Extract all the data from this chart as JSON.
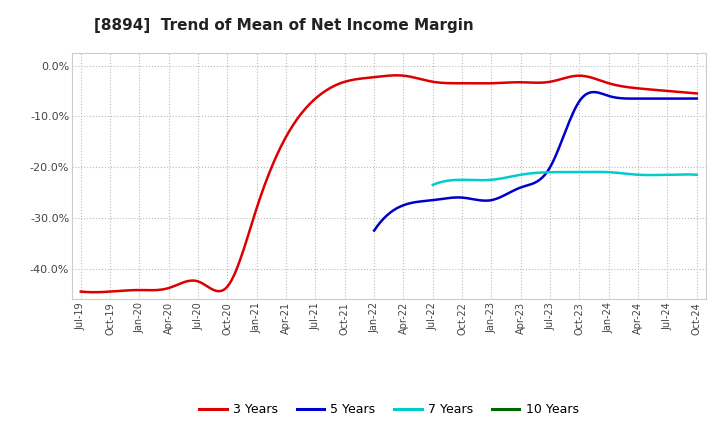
{
  "title": "[8894]  Trend of Mean of Net Income Margin",
  "title_fontsize": 11,
  "background_color": "#ffffff",
  "plot_bg_color": "#ffffff",
  "grid_color": "#aaaaaa",
  "ylim": [
    -46,
    2.5
  ],
  "yticks": [
    0,
    -10,
    -20,
    -30,
    -40
  ],
  "ytick_labels": [
    "0.0%",
    "-10.0%",
    "-20.0%",
    "-30.0%",
    "-40.0%"
  ],
  "series": {
    "3 Years": {
      "color": "#dd0000",
      "data": [
        [
          "Jul-19",
          -44.5
        ],
        [
          "Oct-19",
          -44.5
        ],
        [
          "Jan-20",
          -44.2
        ],
        [
          "Apr-20",
          -43.8
        ],
        [
          "Jul-20",
          -42.5
        ],
        [
          "Oct-20",
          -43.5
        ],
        [
          "Jan-21",
          -28.0
        ],
        [
          "Apr-21",
          -14.0
        ],
        [
          "Jul-21",
          -6.5
        ],
        [
          "Oct-21",
          -3.2
        ],
        [
          "Jan-22",
          -2.3
        ],
        [
          "Apr-22",
          -2.0
        ],
        [
          "Jul-22",
          -3.2
        ],
        [
          "Oct-22",
          -3.5
        ],
        [
          "Jan-23",
          -3.5
        ],
        [
          "Apr-23",
          -3.3
        ],
        [
          "Jul-23",
          -3.2
        ],
        [
          "Oct-23",
          -2.0
        ],
        [
          "Jan-24",
          -3.5
        ],
        [
          "Apr-24",
          -4.5
        ],
        [
          "Jul-24",
          -5.0
        ],
        [
          "Oct-24",
          -5.5
        ]
      ]
    },
    "5 Years": {
      "color": "#0000cc",
      "data": [
        [
          "Jan-22",
          -32.5
        ],
        [
          "Apr-22",
          -27.5
        ],
        [
          "Jul-22",
          -26.5
        ],
        [
          "Oct-22",
          -26.0
        ],
        [
          "Jan-23",
          -26.5
        ],
        [
          "Apr-23",
          -24.0
        ],
        [
          "Jul-23",
          -20.0
        ],
        [
          "Oct-23",
          -7.0
        ],
        [
          "Jan-24",
          -6.0
        ],
        [
          "Apr-24",
          -6.5
        ],
        [
          "Jul-24",
          -6.5
        ],
        [
          "Oct-24",
          -6.5
        ]
      ]
    },
    "7 Years": {
      "color": "#00cccc",
      "data": [
        [
          "Jul-22",
          -23.5
        ],
        [
          "Oct-22",
          -22.5
        ],
        [
          "Jan-23",
          -22.5
        ],
        [
          "Apr-23",
          -21.5
        ],
        [
          "Jul-23",
          -21.0
        ],
        [
          "Oct-23",
          -21.0
        ],
        [
          "Jan-24",
          -21.0
        ],
        [
          "Apr-24",
          -21.5
        ],
        [
          "Jul-24",
          -21.5
        ],
        [
          "Oct-24",
          -21.5
        ]
      ]
    },
    "10 Years": {
      "color": "#006600",
      "data": []
    }
  },
  "x_tick_labels": [
    "Jul-19",
    "Oct-19",
    "Jan-20",
    "Apr-20",
    "Jul-20",
    "Oct-20",
    "Jan-21",
    "Apr-21",
    "Jul-21",
    "Oct-21",
    "Jan-22",
    "Apr-22",
    "Jul-22",
    "Oct-22",
    "Jan-23",
    "Apr-23",
    "Jul-23",
    "Oct-23",
    "Jan-24",
    "Apr-24",
    "Jul-24",
    "Oct-24"
  ],
  "legend_labels": [
    "3 Years",
    "5 Years",
    "7 Years",
    "10 Years"
  ],
  "legend_colors": [
    "#dd0000",
    "#0000cc",
    "#00cccc",
    "#006600"
  ]
}
